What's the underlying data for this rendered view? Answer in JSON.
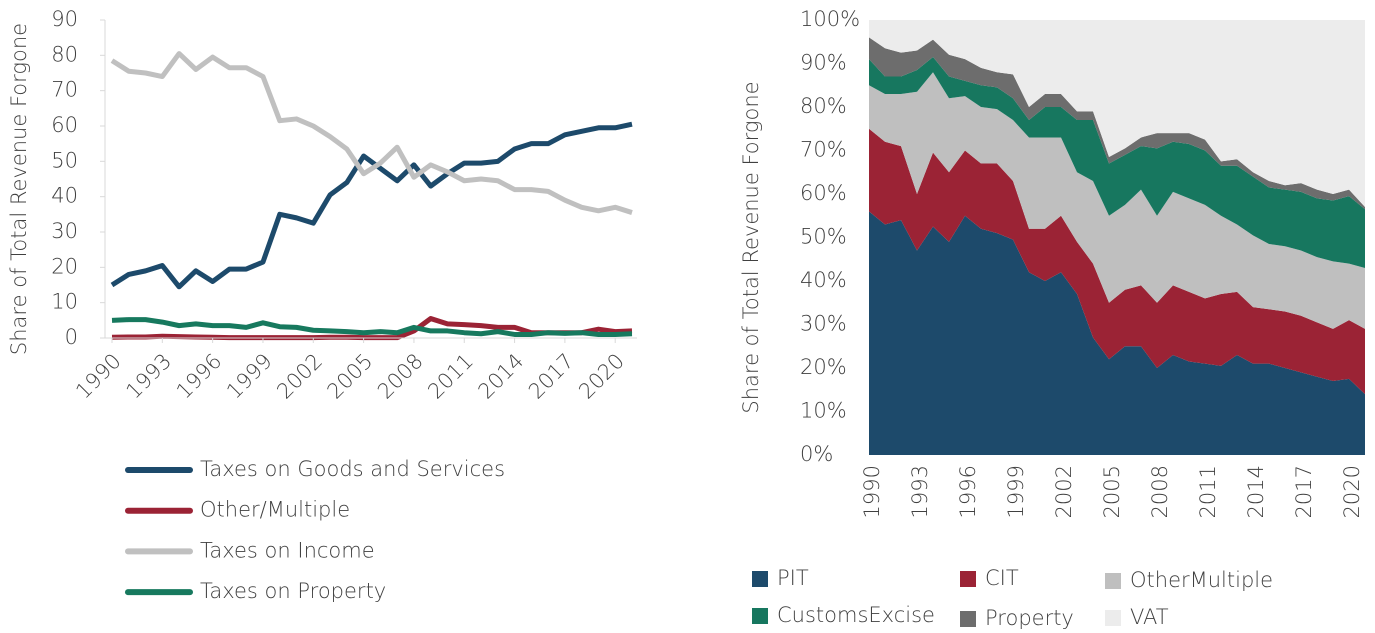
{
  "chart_data": [
    {
      "type": "line",
      "ylabel": "Share of Total Revenue Forgone",
      "legend": "bottom",
      "x": [
        1990,
        1991,
        1992,
        1993,
        1994,
        1995,
        1996,
        1997,
        1998,
        1999,
        2000,
        2001,
        2002,
        2003,
        2004,
        2005,
        2006,
        2007,
        2008,
        2009,
        2010,
        2011,
        2012,
        2013,
        2014,
        2015,
        2016,
        2017,
        2018,
        2019,
        2020,
        2021
      ],
      "xlim": [
        1990,
        2021
      ],
      "xticks": [
        1990,
        1993,
        1996,
        1999,
        2002,
        2005,
        2008,
        2011,
        2014,
        2017,
        2020
      ],
      "ylim": [
        0,
        90
      ],
      "yticks": [
        0,
        10,
        20,
        30,
        40,
        50,
        60,
        70,
        80,
        90
      ],
      "series": [
        {
          "name": "Taxes on Goods and Services",
          "color": "#1d4a6b",
          "values": [
            15,
            18,
            19,
            20.5,
            14.5,
            19,
            16,
            19.5,
            19.5,
            21.5,
            35,
            34,
            32.5,
            40.5,
            44,
            51.5,
            48,
            44.5,
            49,
            43,
            46.5,
            49.5,
            49.5,
            50,
            53.5,
            55,
            55,
            57.5,
            58.5,
            59.5,
            59.5,
            60.5
          ]
        },
        {
          "name": "Other/Multiple",
          "color": "#9b2335",
          "values": [
            0.2,
            0.3,
            0.3,
            0.5,
            0.4,
            0.3,
            0.2,
            0.1,
            0.1,
            0.1,
            0.1,
            0.1,
            0.1,
            0.2,
            0.2,
            0.1,
            0.1,
            0.1,
            2,
            5.5,
            4,
            3.8,
            3.5,
            3,
            3,
            1.5,
            1.5,
            1.5,
            1.5,
            2.5,
            1.8,
            2
          ]
        },
        {
          "name": "Taxes on Income",
          "color": "#c0c0c0",
          "values": [
            78.5,
            75.5,
            75,
            74,
            80.5,
            76,
            79.5,
            76.5,
            76.5,
            74,
            61.5,
            62,
            60,
            57,
            53.5,
            46.5,
            49.5,
            54,
            45.5,
            49,
            47,
            44.5,
            45,
            44.5,
            42,
            42,
            41.5,
            39,
            37,
            36,
            37,
            35.5
          ]
        },
        {
          "name": "Taxes on Property",
          "color": "#17795e",
          "values": [
            5,
            5.2,
            5.2,
            4.5,
            3.5,
            4,
            3.5,
            3.5,
            3,
            4.3,
            3.2,
            3,
            2.2,
            2,
            1.8,
            1.5,
            1.8,
            1.5,
            3,
            2,
            2,
            1.5,
            1.2,
            1.8,
            1,
            1,
            1.5,
            1.3,
            1.5,
            1,
            1,
            1.2
          ]
        }
      ]
    },
    {
      "type": "stacked_area",
      "ylabel": "Share of Total Revenue Forgone",
      "legend": "bottom",
      "x": [
        1990,
        1991,
        1992,
        1993,
        1994,
        1995,
        1996,
        1997,
        1998,
        1999,
        2000,
        2001,
        2002,
        2003,
        2004,
        2005,
        2006,
        2007,
        2008,
        2009,
        2010,
        2011,
        2012,
        2013,
        2014,
        2015,
        2016,
        2017,
        2018,
        2019,
        2020,
        2021
      ],
      "xlim": [
        1990,
        2021
      ],
      "xticks": [
        1990,
        1993,
        1996,
        1999,
        2002,
        2005,
        2008,
        2011,
        2014,
        2017,
        2020
      ],
      "ylim": [
        0,
        100
      ],
      "yticks": [
        {
          "value": 0,
          "label": "0%"
        },
        {
          "value": 10,
          "label": "10%"
        },
        {
          "value": 20,
          "label": "20%"
        },
        {
          "value": 30,
          "label": "30%"
        },
        {
          "value": 40,
          "label": "40%"
        },
        {
          "value": 50,
          "label": "50%"
        },
        {
          "value": 60,
          "label": "60%"
        },
        {
          "value": 70,
          "label": "70%"
        },
        {
          "value": 80,
          "label": "80%"
        },
        {
          "value": 90,
          "label": "90%"
        },
        {
          "value": 100,
          "label": "100%"
        }
      ],
      "series": [
        {
          "name": "PIT",
          "color": "#1d4a6b",
          "values": [
            56,
            53,
            54,
            47,
            52.5,
            49,
            55,
            52,
            51,
            49.5,
            42,
            40,
            42,
            37,
            27,
            22,
            25,
            25,
            20,
            23,
            21.5,
            21,
            20.5,
            23,
            21,
            21,
            20,
            19,
            18,
            17,
            17.5,
            14
          ]
        },
        {
          "name": "CIT",
          "color": "#9b2335",
          "values": [
            19,
            19,
            17,
            13,
            17,
            16,
            15,
            15,
            16,
            13.5,
            10,
            12,
            13,
            12,
            17,
            13,
            13,
            14,
            15,
            16,
            16,
            15,
            16.5,
            14.5,
            13,
            12.5,
            13,
            13,
            12.5,
            12,
            13.5,
            15
          ]
        },
        {
          "name": "OtherMultiple",
          "color": "#bfbfbf",
          "values": [
            10,
            11,
            12,
            23.5,
            18.5,
            17,
            12.5,
            13,
            12.5,
            14,
            21,
            21,
            18,
            16,
            19,
            20,
            19.5,
            22,
            20,
            21.5,
            21.5,
            21.5,
            18,
            15.5,
            16.5,
            15,
            15,
            15,
            15,
            15.5,
            13,
            14
          ]
        },
        {
          "name": "CustomsExcise",
          "color": "#17775f",
          "values": [
            6,
            4,
            4,
            5,
            3.5,
            5,
            3.5,
            5,
            5,
            5,
            4,
            7,
            7,
            12,
            14,
            12,
            11.5,
            10,
            15.5,
            11.5,
            12.5,
            12.5,
            11.5,
            13.5,
            13.5,
            13,
            13,
            13.5,
            13.5,
            14,
            15.5,
            13.5
          ]
        },
        {
          "name": "Property",
          "color": "#6d6d6d",
          "values": [
            5,
            6.5,
            5.5,
            4.5,
            4,
            5,
            5,
            4,
            3.5,
            5.5,
            3,
            3,
            3,
            2,
            2,
            1.5,
            1.5,
            2,
            3.5,
            2,
            2.5,
            2.5,
            1,
            1.5,
            1,
            1.5,
            1,
            2,
            2,
            1.5,
            1.5,
            0.5
          ]
        },
        {
          "name": "VAT",
          "color": "#ececec",
          "values": [
            4,
            6.5,
            7.5,
            7,
            4.5,
            8,
            9,
            11,
            12,
            12.5,
            20,
            17,
            17,
            21,
            21,
            31.5,
            29.5,
            27,
            26,
            26,
            26,
            27.5,
            32.5,
            32,
            35,
            37,
            38,
            37.5,
            39,
            40,
            39,
            43
          ]
        }
      ]
    }
  ]
}
